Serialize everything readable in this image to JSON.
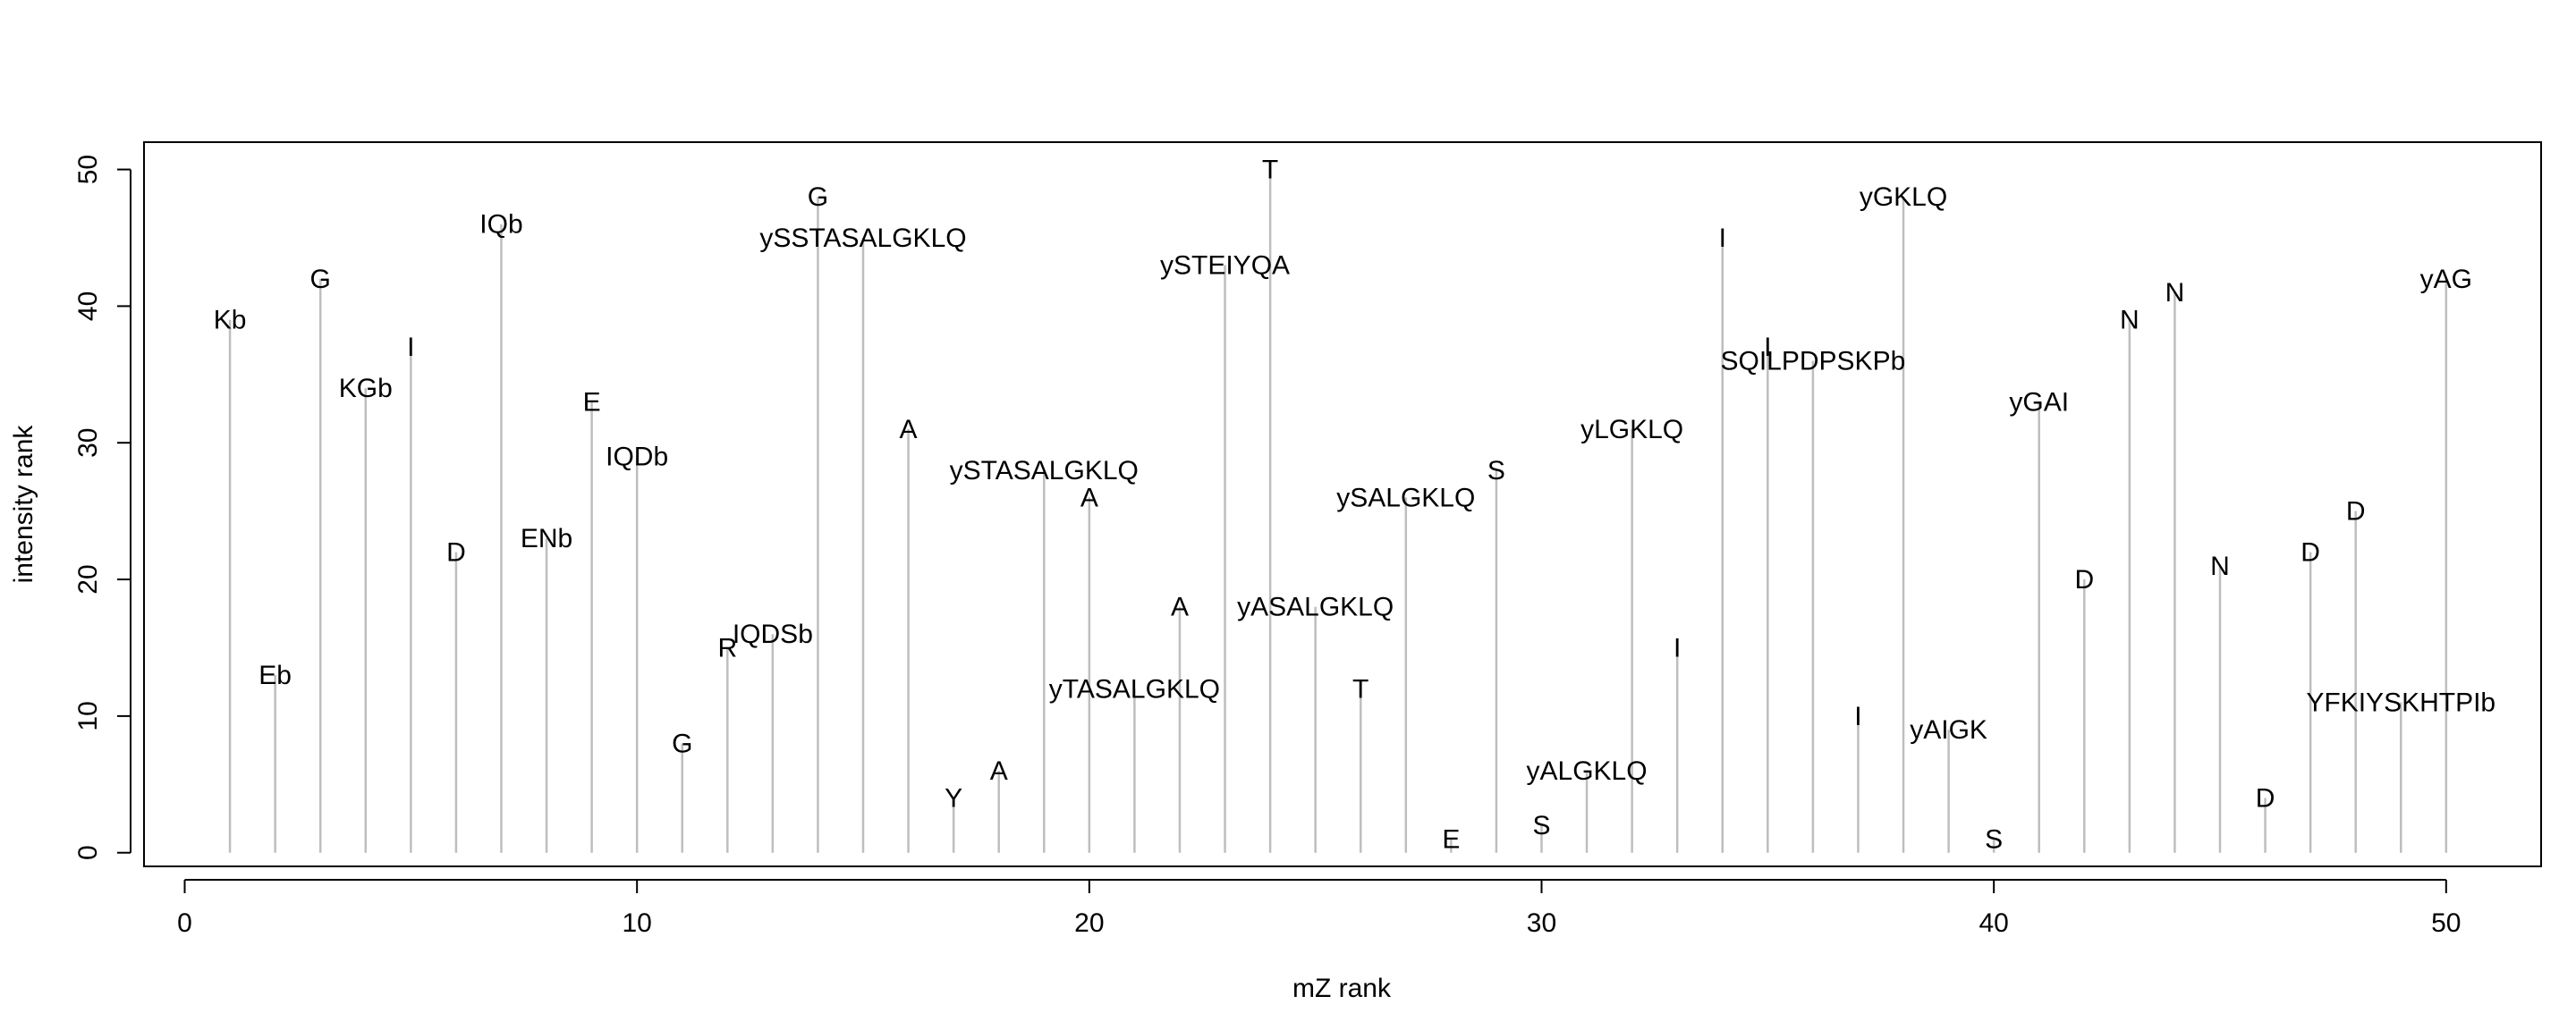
{
  "chart_data": {
    "type": "bar",
    "title": "",
    "xlabel": "mZ rank",
    "ylabel": "intensity rank",
    "xlim": [
      -0.9,
      52.1
    ],
    "ylim": [
      -1,
      52
    ],
    "xticks": [
      0,
      10,
      20,
      30,
      40,
      50
    ],
    "yticks": [
      0,
      10,
      20,
      30,
      40,
      50
    ],
    "grid": false,
    "colors": {
      "stem": "#bebebe",
      "axis": "#000000",
      "text": "#000000"
    },
    "points": [
      {
        "x": 1,
        "y": 39,
        "label": "Kb"
      },
      {
        "x": 2,
        "y": 13,
        "label": "Eb"
      },
      {
        "x": 3,
        "y": 42,
        "label": "G"
      },
      {
        "x": 4,
        "y": 34,
        "label": "KGb"
      },
      {
        "x": 5,
        "y": 37,
        "label": "I"
      },
      {
        "x": 6,
        "y": 22,
        "label": "D"
      },
      {
        "x": 7,
        "y": 46,
        "label": "IQb"
      },
      {
        "x": 8,
        "y": 23,
        "label": "ENb"
      },
      {
        "x": 9,
        "y": 33,
        "label": "E"
      },
      {
        "x": 10,
        "y": 29,
        "label": "IQDb"
      },
      {
        "x": 11,
        "y": 8,
        "label": "G"
      },
      {
        "x": 12,
        "y": 15,
        "label": "R"
      },
      {
        "x": 13,
        "y": 16,
        "label": "IQDSb"
      },
      {
        "x": 14,
        "y": 48,
        "label": "G"
      },
      {
        "x": 15,
        "y": 45,
        "label": "ySSTASALGKLQ"
      },
      {
        "x": 16,
        "y": 31,
        "label": "A"
      },
      {
        "x": 17,
        "y": 4,
        "label": "Y"
      },
      {
        "x": 18,
        "y": 6,
        "label": "A"
      },
      {
        "x": 19,
        "y": 28,
        "label": "ySTASALGKLQ"
      },
      {
        "x": 20,
        "y": 26,
        "label": "A"
      },
      {
        "x": 21,
        "y": 12,
        "label": "yTASALGKLQ"
      },
      {
        "x": 22,
        "y": 18,
        "label": "A"
      },
      {
        "x": 23,
        "y": 43,
        "label": "ySTEIYQA"
      },
      {
        "x": 24,
        "y": 50,
        "label": "T"
      },
      {
        "x": 25,
        "y": 18,
        "label": "yASALGKLQ"
      },
      {
        "x": 26,
        "y": 12,
        "label": "T"
      },
      {
        "x": 27,
        "y": 26,
        "label": "ySALGKLQ"
      },
      {
        "x": 28,
        "y": 1,
        "label": "E"
      },
      {
        "x": 29,
        "y": 28,
        "label": "S"
      },
      {
        "x": 30,
        "y": 2,
        "label": "S"
      },
      {
        "x": 31,
        "y": 6,
        "label": "yALGKLQ"
      },
      {
        "x": 32,
        "y": 31,
        "label": "yLGKLQ"
      },
      {
        "x": 33,
        "y": 15,
        "label": "I"
      },
      {
        "x": 34,
        "y": 45,
        "label": "I"
      },
      {
        "x": 35,
        "y": 37,
        "label": "I"
      },
      {
        "x": 36,
        "y": 36,
        "label": "SQILPDPSKPb"
      },
      {
        "x": 37,
        "y": 10,
        "label": "I"
      },
      {
        "x": 38,
        "y": 48,
        "label": "yGKLQ"
      },
      {
        "x": 39,
        "y": 9,
        "label": "yAIGK"
      },
      {
        "x": 40,
        "y": 1,
        "label": "S"
      },
      {
        "x": 41,
        "y": 33,
        "label": "yGAI"
      },
      {
        "x": 42,
        "y": 20,
        "label": "D"
      },
      {
        "x": 43,
        "y": 39,
        "label": "N"
      },
      {
        "x": 44,
        "y": 41,
        "label": "N"
      },
      {
        "x": 45,
        "y": 21,
        "label": "N"
      },
      {
        "x": 46,
        "y": 4,
        "label": "D"
      },
      {
        "x": 47,
        "y": 22,
        "label": "D"
      },
      {
        "x": 48,
        "y": 25,
        "label": "D"
      },
      {
        "x": 49,
        "y": 11,
        "label": "YFKIYSKHTPIb"
      },
      {
        "x": 50,
        "y": 42,
        "label": "yAG"
      }
    ]
  }
}
